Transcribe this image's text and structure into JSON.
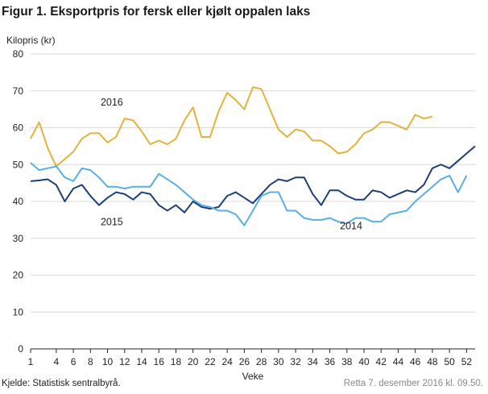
{
  "figure": {
    "title": "Figur 1. Eksportpris for fersk eller kjølt oppalen laks",
    "source": "Kjelde: Statistisk sentralbyrå.",
    "revision": "Retta 7. desember 2016 kl. 09.50."
  },
  "chart_data": {
    "type": "line",
    "ylabel": "Kilopris  (kr)",
    "xlabel": "Veke",
    "ylim": [
      0,
      80
    ],
    "yticks": [
      0,
      10,
      20,
      30,
      40,
      50,
      60,
      70,
      80
    ],
    "xlim": [
      1,
      53
    ],
    "xticks": [
      1,
      4,
      6,
      8,
      10,
      12,
      14,
      16,
      18,
      20,
      22,
      24,
      26,
      28,
      30,
      32,
      34,
      36,
      38,
      40,
      42,
      44,
      46,
      48,
      50,
      52
    ],
    "grid": "horizontal",
    "series": [
      {
        "name": "2016",
        "color": "#e3b23c",
        "x": [
          1,
          2,
          3,
          4,
          5,
          6,
          7,
          8,
          9,
          10,
          11,
          12,
          13,
          14,
          15,
          16,
          17,
          18,
          19,
          20,
          21,
          22,
          23,
          24,
          25,
          26,
          27,
          28,
          29,
          30,
          31,
          32,
          33,
          34,
          35,
          36,
          37,
          38,
          39,
          40,
          41,
          42,
          43,
          44,
          45,
          46,
          47,
          48
        ],
        "values": [
          57.0,
          61.5,
          54.5,
          49.5,
          51.5,
          53.5,
          57.0,
          58.5,
          58.5,
          56.0,
          57.5,
          62.5,
          62.0,
          59.0,
          55.5,
          56.5,
          55.5,
          57.0,
          62.0,
          65.5,
          57.5,
          57.5,
          64.5,
          69.5,
          67.5,
          65.0,
          71.0,
          70.5,
          65.0,
          59.5,
          57.5,
          59.5,
          59.0,
          56.5,
          56.5,
          55.0,
          53.0,
          53.5,
          55.5,
          58.5,
          59.5,
          61.5,
          61.5,
          60.5,
          59.5,
          63.5,
          62.5,
          63.0
        ]
      },
      {
        "name": "2015",
        "color": "#1c3f7a",
        "x": [
          1,
          2,
          3,
          4,
          5,
          6,
          7,
          8,
          9,
          10,
          11,
          12,
          13,
          14,
          15,
          16,
          17,
          18,
          19,
          20,
          21,
          22,
          23,
          24,
          25,
          26,
          27,
          28,
          29,
          30,
          31,
          32,
          33,
          34,
          35,
          36,
          37,
          38,
          39,
          40,
          41,
          42,
          43,
          44,
          45,
          46,
          47,
          48,
          49,
          50,
          51,
          52,
          53
        ],
        "values": [
          45.5,
          45.7,
          46.0,
          44.5,
          40.0,
          43.5,
          44.5,
          41.5,
          39.0,
          41.0,
          42.5,
          42.0,
          40.5,
          42.5,
          42.0,
          39.0,
          37.5,
          39.0,
          37.0,
          40.0,
          38.5,
          38.0,
          38.5,
          41.5,
          42.5,
          41.0,
          39.5,
          42.0,
          44.5,
          46.0,
          45.5,
          46.5,
          46.5,
          42.0,
          39.0,
          43.0,
          43.0,
          41.5,
          40.5,
          40.5,
          43.0,
          42.5,
          41.0,
          42.0,
          43.0,
          42.5,
          44.5,
          49.0,
          50.0,
          49.0,
          51.0,
          53.0,
          55.0
        ]
      },
      {
        "name": "2014",
        "color": "#5aaee6",
        "x": [
          1,
          2,
          3,
          4,
          5,
          6,
          7,
          8,
          9,
          10,
          11,
          12,
          13,
          14,
          15,
          16,
          17,
          18,
          19,
          20,
          21,
          22,
          23,
          24,
          25,
          26,
          27,
          28,
          29,
          30,
          31,
          32,
          33,
          34,
          35,
          36,
          37,
          38,
          39,
          40,
          41,
          42,
          43,
          44,
          45,
          46,
          47,
          48,
          49,
          50,
          51,
          52
        ],
        "values": [
          50.5,
          48.5,
          49.0,
          49.5,
          46.5,
          45.5,
          49.0,
          48.5,
          46.5,
          44.0,
          44.0,
          43.5,
          44.0,
          44.0,
          44.0,
          47.5,
          46.0,
          44.5,
          42.5,
          40.5,
          39.0,
          38.5,
          37.5,
          37.5,
          36.5,
          33.5,
          37.5,
          41.5,
          42.5,
          42.5,
          37.5,
          37.5,
          35.5,
          35.0,
          35.0,
          35.5,
          34.5,
          34.0,
          35.5,
          35.5,
          34.5,
          34.5,
          36.5,
          37.0,
          37.5,
          40.0,
          42.0,
          44.0,
          46.0,
          47.0,
          42.5,
          47.0
        ]
      }
    ],
    "series_labels": [
      {
        "text": "2016",
        "x": 10.5,
        "y": 66
      },
      {
        "text": "2015",
        "x": 10.5,
        "y": 33.5
      },
      {
        "text": "2014",
        "x": 38.5,
        "y": 32.5
      }
    ]
  }
}
